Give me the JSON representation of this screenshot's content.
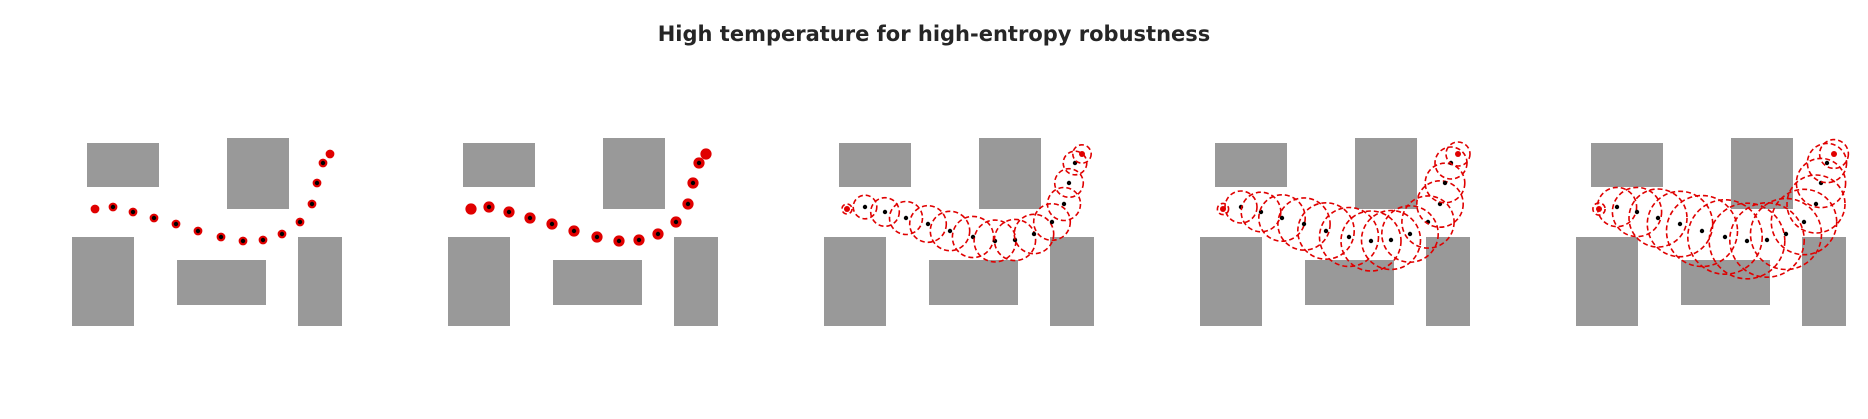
{
  "figure": {
    "title": "High temperature for high-entropy robustness"
  },
  "colors": {
    "obstacle": "#999999",
    "trajectory": "#e00000",
    "waypoint": "#000000",
    "background": "#ffffff"
  },
  "panels": [
    {
      "id": "panel-1",
      "uncertainty_scale": 0.15
    },
    {
      "id": "panel-2",
      "uncertainty_scale": 0.35
    },
    {
      "id": "panel-3",
      "uncertainty_scale": 0.65
    },
    {
      "id": "panel-4",
      "uncertainty_scale": 1.0
    },
    {
      "id": "panel-5",
      "uncertainty_scale": 1.3
    }
  ]
}
